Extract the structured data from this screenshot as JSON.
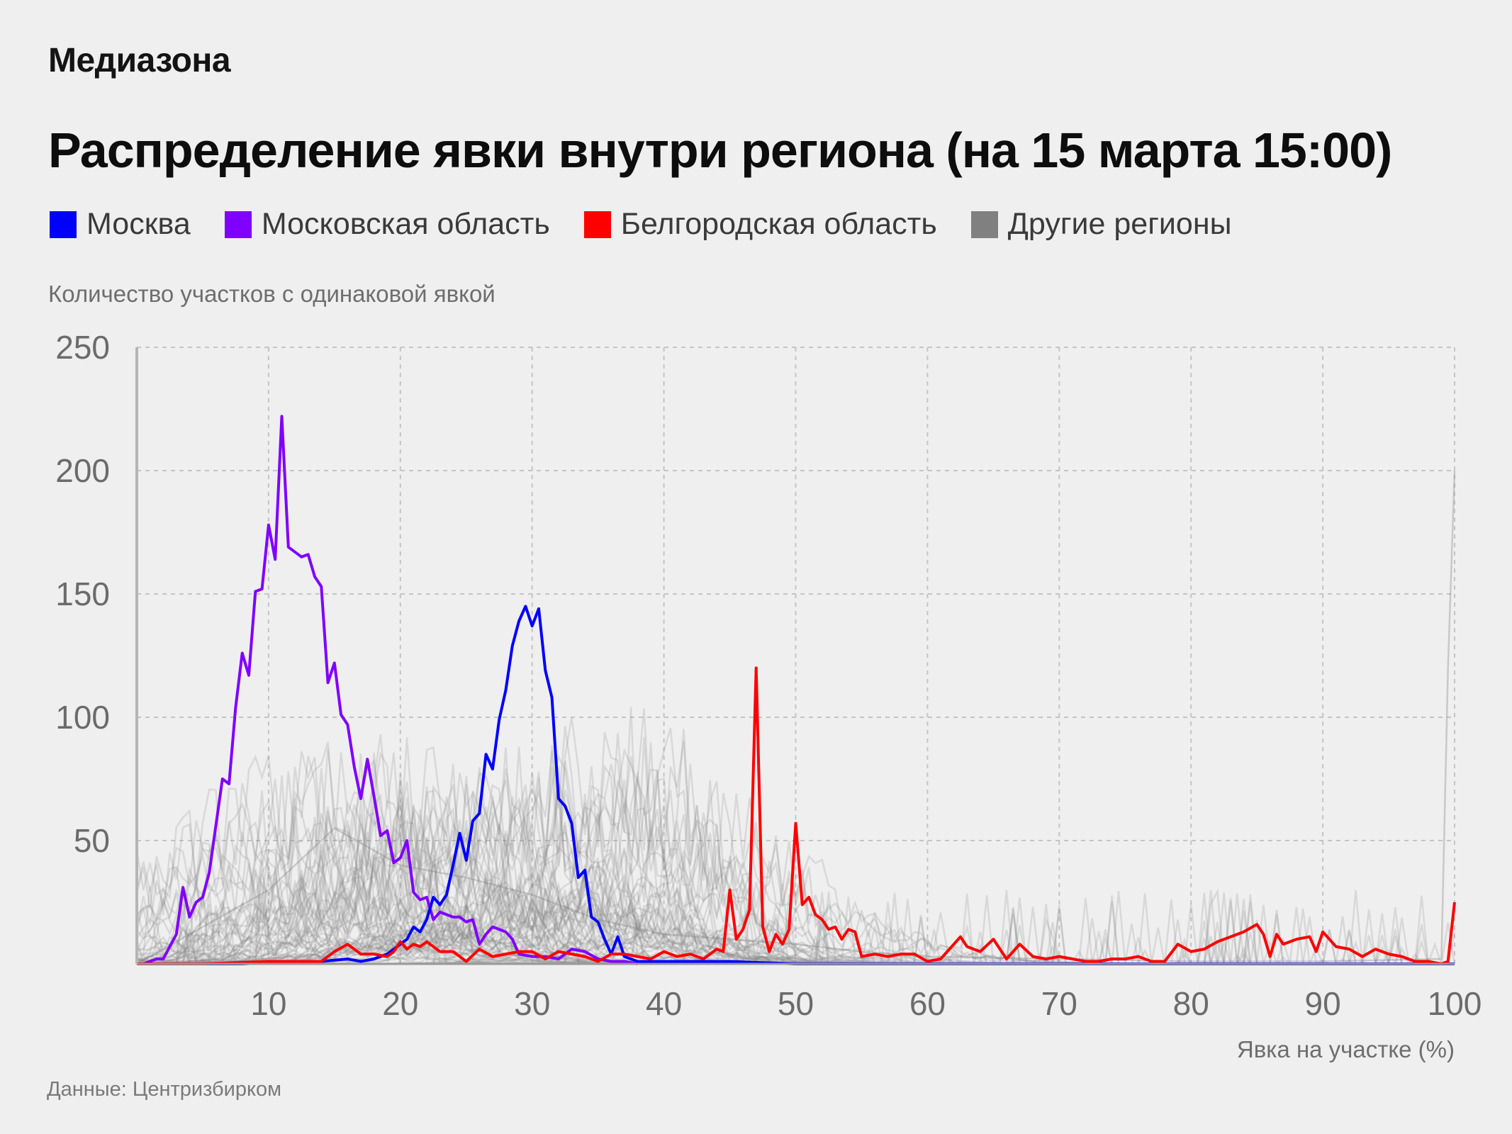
{
  "header": {
    "brand": "Медиазона",
    "title": "Распределение явки внутри региона (на 15 марта 15:00)"
  },
  "legend": [
    {
      "label": "Москва",
      "color": "#0000ff"
    },
    {
      "label": "Московская область",
      "color": "#8000ff"
    },
    {
      "label": "Белгородская область",
      "color": "#ff0000"
    },
    {
      "label": "Другие регионы",
      "color": "#808080"
    }
  ],
  "footer": {
    "source": "Данные: Центризбирком"
  },
  "chart_data": {
    "type": "line",
    "title": "Распределение явки внутри региона (на 15 марта 15:00)",
    "ylabel": "Количество участков с одинаковой явкой",
    "xlabel": "Явка на участке (%)",
    "xlim": [
      0,
      100
    ],
    "ylim": [
      0,
      250
    ],
    "xticks": [
      10,
      20,
      30,
      40,
      50,
      60,
      70,
      80,
      90,
      100
    ],
    "yticks": [
      50,
      100,
      150,
      200,
      250
    ],
    "grid": true,
    "series": [
      {
        "name": "Московская область",
        "color": "#8000ff",
        "x": [
          0,
          0.5,
          1,
          1.5,
          2,
          2.5,
          3,
          3.5,
          4,
          4.5,
          5,
          5.5,
          6,
          6.5,
          7,
          7.5,
          8,
          8.5,
          9,
          9.5,
          10,
          10.5,
          11,
          11.5,
          12,
          12.5,
          13,
          13.5,
          14,
          14.5,
          15,
          15.5,
          16,
          16.5,
          17,
          17.5,
          18,
          18.5,
          19,
          19.5,
          20,
          20.5,
          21,
          21.5,
          22,
          22.5,
          23,
          23.5,
          24,
          24.5,
          25,
          25.5,
          26,
          26.5,
          27,
          27.5,
          28,
          28.5,
          29,
          30,
          31,
          32,
          33,
          34,
          35,
          36,
          37,
          38
        ],
        "values": [
          0,
          0,
          1,
          2,
          2,
          7,
          12,
          31,
          19,
          25,
          27,
          37,
          56,
          75,
          73,
          104,
          126,
          117,
          151,
          152,
          178,
          164,
          222,
          169,
          167,
          165,
          166,
          157,
          153,
          114,
          122,
          101,
          97,
          80,
          67,
          83,
          68,
          52,
          54,
          41,
          43,
          50,
          29,
          26,
          27,
          18,
          21,
          20,
          19,
          19,
          17,
          18,
          8,
          12,
          15,
          14,
          13,
          10,
          4,
          3,
          3,
          2,
          6,
          5,
          2,
          1,
          1,
          0
        ]
      },
      {
        "name": "Москва",
        "color": "#0000ff",
        "x": [
          0,
          4,
          8,
          12,
          14,
          16,
          17,
          18,
          19,
          20,
          20.5,
          21,
          21.5,
          22,
          22.5,
          23,
          23.5,
          24,
          24.5,
          25,
          25.5,
          26,
          26.5,
          27,
          27.5,
          28,
          28.5,
          29,
          29.5,
          30,
          30.5,
          31,
          31.5,
          32,
          32.5,
          33,
          33.5,
          34,
          34.5,
          35,
          35.5,
          36,
          36.5,
          37,
          38,
          40,
          45,
          50,
          60,
          70,
          80,
          90,
          100
        ],
        "values": [
          0,
          0,
          0,
          1,
          1,
          2,
          1,
          2,
          4,
          8,
          10,
          15,
          13,
          18,
          27,
          24,
          28,
          40,
          53,
          42,
          58,
          61,
          85,
          79,
          99,
          111,
          129,
          139,
          145,
          137,
          144,
          119,
          108,
          67,
          64,
          57,
          35,
          38,
          19,
          17,
          10,
          4,
          11,
          3,
          1,
          1,
          1,
          0,
          0,
          0,
          0,
          0,
          0
        ]
      },
      {
        "name": "Белгородская область",
        "color": "#ff0000",
        "x": [
          0,
          5,
          10,
          14,
          15,
          16,
          17,
          18,
          19,
          19.5,
          20,
          20.5,
          21,
          21.5,
          22,
          22.5,
          23,
          24,
          25,
          26,
          27,
          28,
          29,
          30,
          31,
          32,
          33,
          34,
          35,
          36,
          37,
          38,
          39,
          40,
          41,
          42,
          43,
          44,
          44.5,
          45,
          45.5,
          46,
          46.5,
          47,
          47.5,
          48,
          48.5,
          49,
          49.5,
          50,
          50.5,
          51,
          51.5,
          52,
          52.5,
          53,
          53.5,
          54,
          54.5,
          55,
          56,
          57,
          58,
          59,
          60,
          61,
          62,
          62.5,
          63,
          64,
          65,
          66,
          67,
          68,
          69,
          70,
          71,
          72,
          73,
          74,
          75,
          76,
          77,
          78,
          79,
          80,
          81,
          82,
          83,
          84,
          85,
          85.5,
          86,
          86.5,
          87,
          88,
          89,
          89.5,
          90,
          91,
          92,
          93,
          94,
          95,
          96,
          97,
          98,
          99,
          99.5,
          100
        ],
        "values": [
          0,
          0,
          1,
          1,
          5,
          8,
          4,
          4,
          3,
          5,
          9,
          6,
          8,
          7,
          9,
          7,
          5,
          5,
          1,
          6,
          3,
          4,
          5,
          5,
          2,
          5,
          4,
          3,
          1,
          4,
          4,
          3,
          2,
          5,
          3,
          4,
          2,
          6,
          5,
          30,
          10,
          14,
          22,
          120,
          15,
          5,
          12,
          8,
          14,
          57,
          24,
          27,
          20,
          18,
          14,
          15,
          10,
          14,
          13,
          3,
          4,
          3,
          4,
          4,
          1,
          2,
          8,
          11,
          7,
          5,
          10,
          2,
          8,
          3,
          2,
          3,
          2,
          1,
          1,
          2,
          2,
          3,
          1,
          1,
          8,
          5,
          6,
          9,
          11,
          13,
          16,
          12,
          3,
          12,
          8,
          10,
          11,
          5,
          13,
          7,
          6,
          3,
          6,
          4,
          3,
          1,
          1,
          0,
          1,
          25
        ]
      },
      {
        "name": "Другие регионы",
        "color": "#808080",
        "x": [
          0,
          10,
          15,
          20,
          25,
          30,
          35,
          40,
          45,
          50,
          55,
          60,
          70,
          80,
          90,
          99,
          99.5,
          100
        ],
        "values": [
          0,
          30,
          55,
          40,
          35,
          28,
          18,
          12,
          10,
          8,
          5,
          3,
          2,
          1,
          1,
          2,
          120,
          200
        ]
      }
    ]
  }
}
